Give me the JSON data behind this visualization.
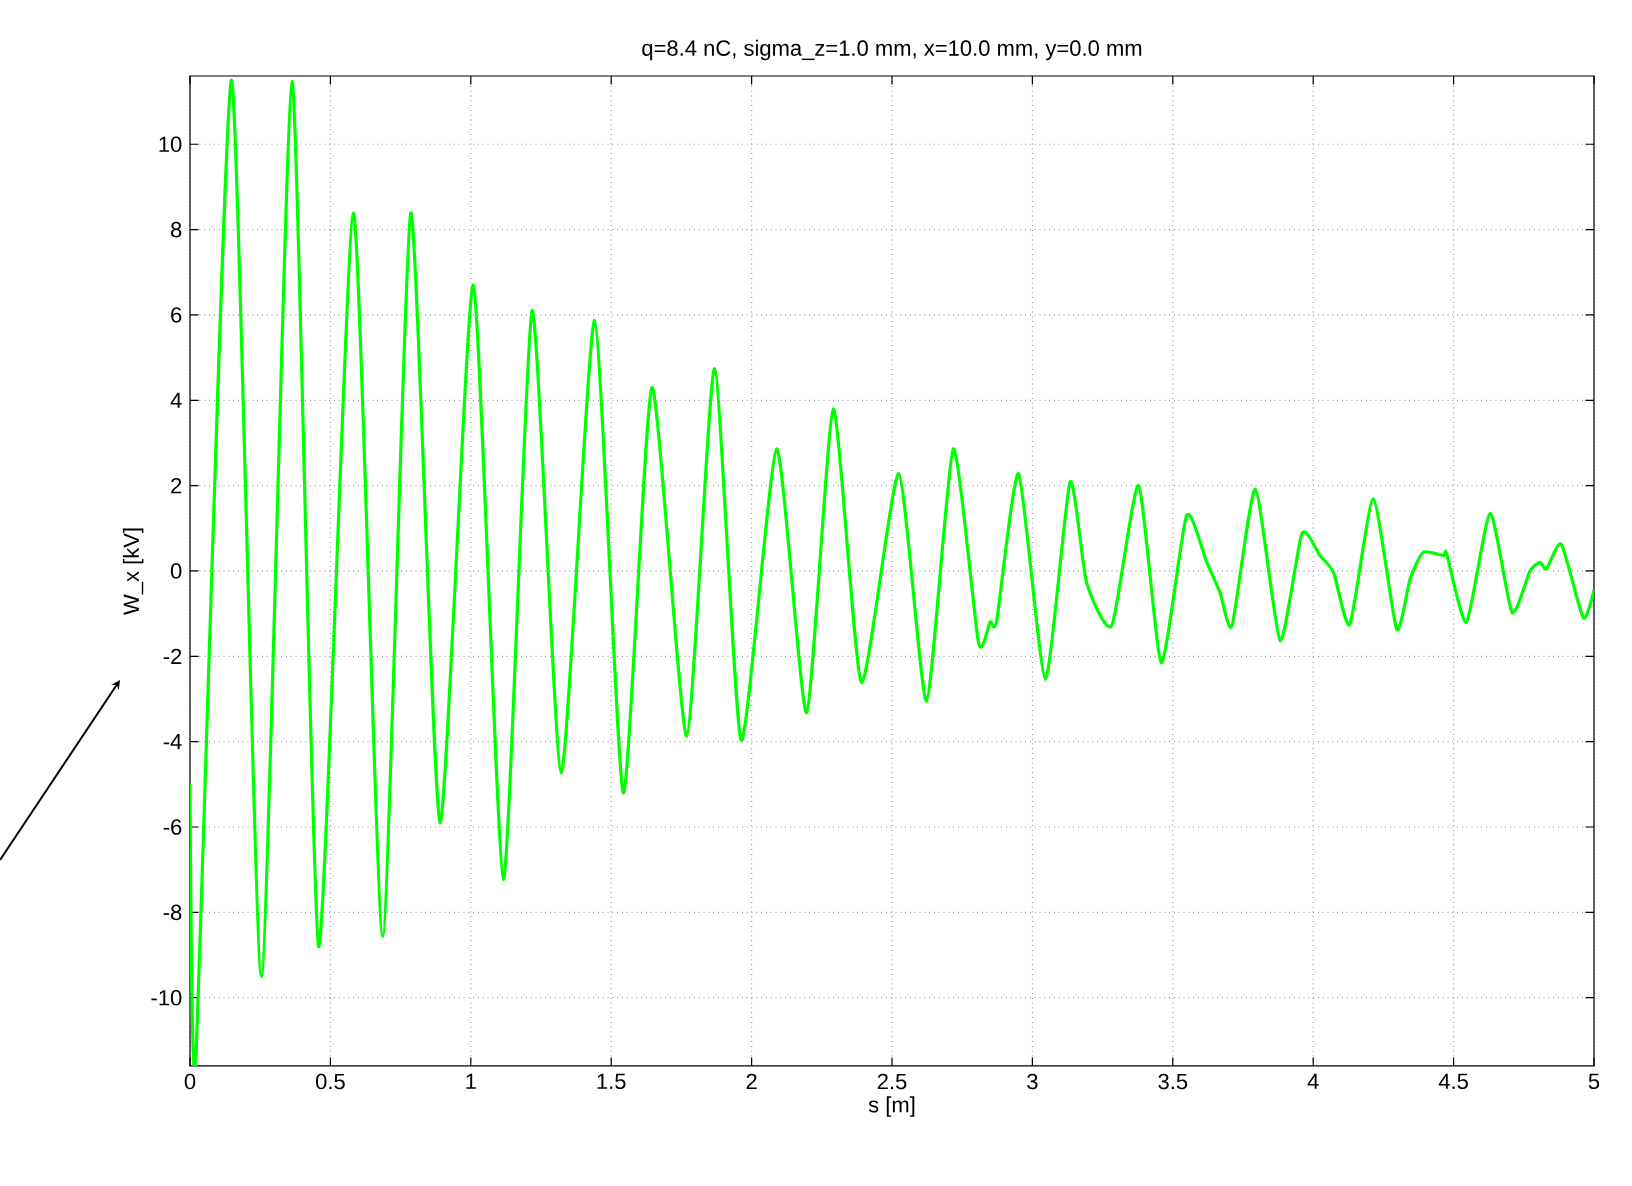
{
  "chart_data": {
    "type": "line",
    "title": "q=8.4 nC,  sigma_z=1.0 mm,  x=10.0 mm, y=0.0 mm",
    "xlabel": "s  [m]",
    "ylabel": "W_x  [kV]",
    "series": [
      {
        "color": "#00ff00",
        "x": [
          0,
          0.02,
          0.147,
          0.254,
          0.363,
          0.458,
          0.582,
          0.686,
          0.786,
          0.89,
          1.009,
          1.116,
          1.218,
          1.322,
          1.441,
          1.543,
          1.645,
          1.769,
          1.868,
          1.963,
          2.089,
          2.196,
          2.291,
          2.391,
          2.524,
          2.623,
          2.718,
          2.808,
          2.849,
          2.873,
          2.951,
          3.046,
          3.134,
          3.193,
          3.283,
          3.378,
          3.459,
          3.549,
          3.621,
          3.668,
          3.711,
          3.794,
          3.882,
          3.96,
          4.024,
          4.072,
          4.131,
          4.214,
          4.297,
          4.345,
          4.392,
          4.464,
          4.475,
          4.546,
          4.63,
          4.708,
          4.772,
          4.808,
          4.831,
          4.884,
          4.962,
          5
        ],
        "values": [
          -5,
          -11.5,
          11.5,
          -9.5,
          11.47,
          -8.8,
          8.39,
          -8.56,
          8.39,
          -5.9,
          6.7,
          -7.23,
          6.1,
          -4.73,
          5.87,
          -5.2,
          4.3,
          -3.87,
          4.74,
          -3.97,
          2.86,
          -3.32,
          3.8,
          -2.61,
          2.28,
          -3.05,
          2.86,
          -1.68,
          -1.2,
          -1.16,
          2.28,
          -2.54,
          2.08,
          -0.27,
          -1.28,
          2.0,
          -2.15,
          1.3,
          0.2,
          -0.5,
          -1.28,
          1.92,
          -1.63,
          0.88,
          0.36,
          -0.03,
          -1.25,
          1.69,
          -1.36,
          -0.19,
          0.44,
          0.36,
          0.41,
          -1.2,
          1.35,
          -0.97,
          0,
          0.2,
          0.05,
          0.62,
          -1.1,
          -0.45
        ]
      }
    ],
    "xlim": [
      0,
      5
    ],
    "ylim": [
      -11.6,
      11.6
    ],
    "xticks": [
      0,
      0.5,
      1,
      1.5,
      2,
      2.5,
      3,
      3.5,
      4,
      4.5,
      5
    ],
    "yticks": [
      -10,
      -8,
      -6,
      -4,
      -2,
      0,
      2,
      4,
      6,
      8,
      10
    ],
    "grid": true
  }
}
